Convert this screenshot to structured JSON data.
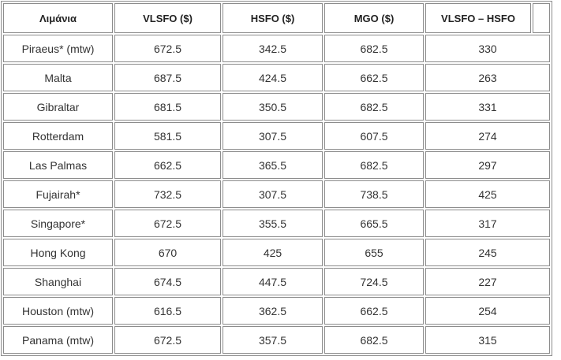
{
  "table": {
    "headers": [
      "Λιμάνια",
      "VLSFO ($)",
      "HSFO ($)",
      "MGO ($)",
      "VLSFO – HSFO"
    ],
    "rows": [
      [
        "Piraeus* (mtw)",
        672.5,
        342.5,
        682.5,
        330
      ],
      [
        "Malta",
        687.5,
        424.5,
        662.5,
        263
      ],
      [
        "Gibraltar",
        681.5,
        350.5,
        682.5,
        331
      ],
      [
        "Rotterdam",
        581.5,
        307.5,
        607.5,
        274
      ],
      [
        "Las Palmas",
        662.5,
        365.5,
        682.5,
        297
      ],
      [
        "Fujairah*",
        732.5,
        307.5,
        738.5,
        425
      ],
      [
        "Singapore*",
        672.5,
        355.5,
        665.5,
        317
      ],
      [
        "Hong Kong",
        670,
        425,
        655,
        245
      ],
      [
        "Shanghai",
        674.5,
        447.5,
        724.5,
        227
      ],
      [
        "Houston (mtw)",
        616.5,
        362.5,
        662.5,
        254
      ],
      [
        "Panama (mtw)",
        672.5,
        357.5,
        682.5,
        315
      ]
    ]
  }
}
